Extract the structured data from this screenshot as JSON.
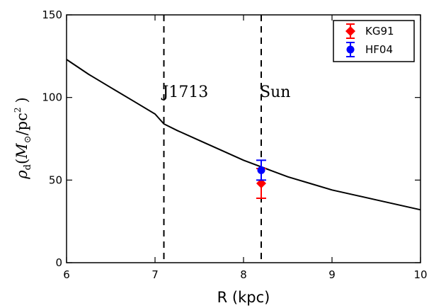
{
  "chart_data": {
    "type": "line",
    "title": "",
    "xlabel": "R (kpc)",
    "ylabel_parts": {
      "rho": "ρ",
      "sub_d": "d",
      "open": "(",
      "M": "M",
      "sun_sub": "⊙",
      "slash": "/pc",
      "sup_2": "2",
      "close": ")"
    },
    "xlim": [
      6,
      10
    ],
    "ylim": [
      0,
      150
    ],
    "xticks": [
      6,
      7,
      8,
      9,
      10
    ],
    "yticks": [
      0,
      50,
      100,
      150
    ],
    "grid": false,
    "legend_position": "top-right",
    "curve": {
      "x": [
        6.0,
        6.25,
        6.5,
        6.75,
        7.0,
        7.1,
        7.25,
        7.5,
        7.75,
        8.0,
        8.2,
        8.25,
        8.5,
        8.75,
        9.0,
        9.25,
        9.5,
        9.75,
        10.0
      ],
      "y": [
        123,
        114,
        106,
        98,
        90,
        84,
        80,
        74,
        68,
        62,
        58,
        57,
        52,
        48,
        44,
        41,
        38,
        35,
        32
      ]
    },
    "vertical_lines": [
      {
        "x": 7.1,
        "label": "J1713"
      },
      {
        "x": 8.2,
        "label": "Sun"
      }
    ],
    "series": [
      {
        "name": "KG91",
        "color": "#ff0000",
        "marker": "diamond",
        "x": 8.2,
        "y": 48,
        "err_low": 9,
        "err_high": 9
      },
      {
        "name": "HF04",
        "color": "#0000ff",
        "marker": "circle",
        "x": 8.2,
        "y": 56,
        "err_low": 6,
        "err_high": 6
      }
    ]
  }
}
